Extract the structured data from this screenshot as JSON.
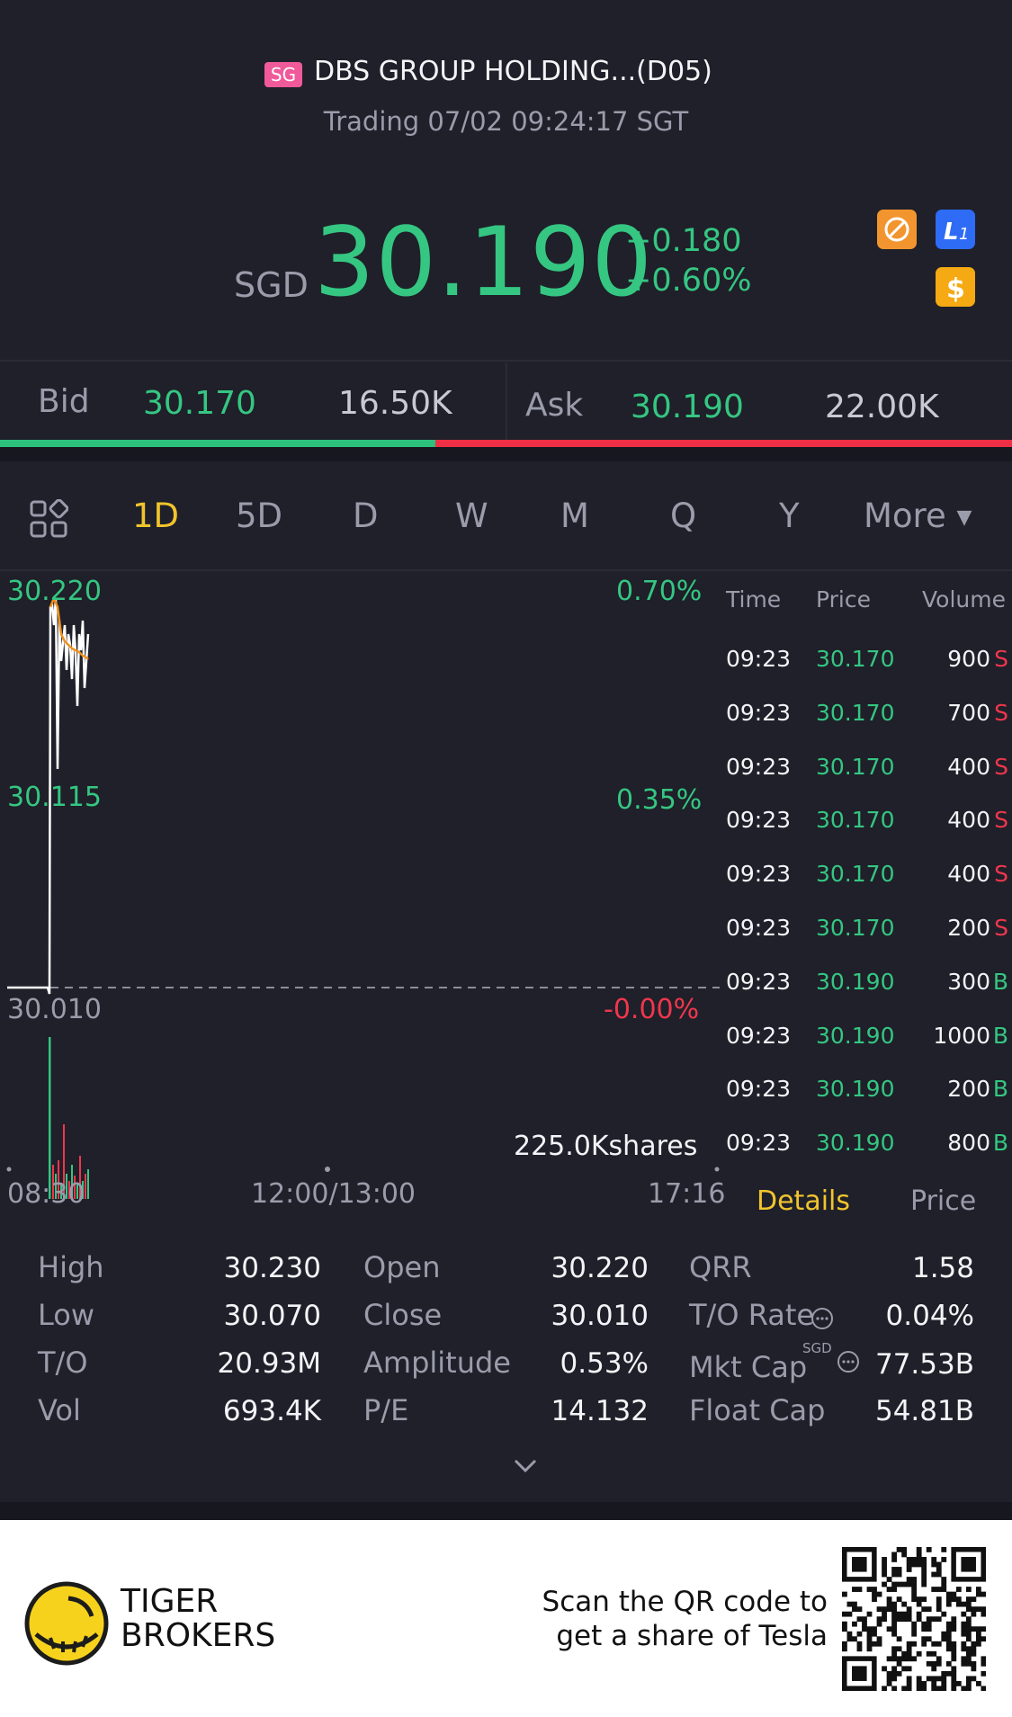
{
  "header": {
    "market_badge": "SG",
    "name": "DBS GROUP HOLDING...(D05)",
    "status": "Trading 07/02 09:24:17 SGT",
    "currency": "SGD",
    "price": "30.190",
    "change": "+0.180",
    "change_pct": "+0.60%"
  },
  "quote_bar": {
    "bid_label": "Bid",
    "bid_price": "30.170",
    "bid_size": "16.50K",
    "ask_label": "Ask",
    "ask_price": "30.190",
    "ask_size": "22.00K",
    "bid_fraction": 0.43
  },
  "tabs": {
    "items": [
      "1D",
      "5D",
      "D",
      "W",
      "M",
      "Q",
      "Y"
    ],
    "more": "More",
    "active": "1D"
  },
  "chart": {
    "price_high": "30.220",
    "price_mid": "30.115",
    "price_low": "30.010",
    "pct_high": "0.70%",
    "pct_mid": "0.35%",
    "pct_low": "-0.00%",
    "volume_label": "225.0Kshares",
    "time_start": "08:30",
    "time_mid": "12:00/13:00",
    "time_end": "17:16",
    "colors": {
      "price_line": "#ffffff",
      "avg_line": "#f0911e",
      "baseline": "#9a9cab"
    }
  },
  "trades": {
    "headers": {
      "time": "Time",
      "price": "Price",
      "volume": "Volume"
    },
    "rows": [
      {
        "time": "09:23",
        "price": "30.170",
        "volume": "900",
        "side": "S"
      },
      {
        "time": "09:23",
        "price": "30.170",
        "volume": "700",
        "side": "S"
      },
      {
        "time": "09:23",
        "price": "30.170",
        "volume": "400",
        "side": "S"
      },
      {
        "time": "09:23",
        "price": "30.170",
        "volume": "400",
        "side": "S"
      },
      {
        "time": "09:23",
        "price": "30.170",
        "volume": "400",
        "side": "S"
      },
      {
        "time": "09:23",
        "price": "30.170",
        "volume": "200",
        "side": "S"
      },
      {
        "time": "09:23",
        "price": "30.190",
        "volume": "300",
        "side": "B"
      },
      {
        "time": "09:23",
        "price": "30.190",
        "volume": "1000",
        "side": "B"
      },
      {
        "time": "09:23",
        "price": "30.190",
        "volume": "200",
        "side": "B"
      },
      {
        "time": "09:23",
        "price": "30.190",
        "volume": "800",
        "side": "B"
      }
    ],
    "tab_details": "Details",
    "tab_price": "Price"
  },
  "stats": {
    "high_label": "High",
    "high": "30.230",
    "low_label": "Low",
    "low": "30.070",
    "to_label": "T/O",
    "to": "20.93M",
    "vol_label": "Vol",
    "vol": "693.4K",
    "open_label": "Open",
    "open": "30.220",
    "close_label": "Close",
    "close": "30.010",
    "amp_label": "Amplitude",
    "amp": "0.53%",
    "pe_label": "P/E",
    "pe": "14.132",
    "qrr_label": "QRR",
    "qrr": "1.58",
    "torate_label": "T/O Rate",
    "torate": "0.04%",
    "mktcap_label": "Mkt Cap",
    "mktcap_unit": "SGD",
    "mktcap": "77.53B",
    "floatcap_label": "Float Cap",
    "floatcap": "54.81B"
  },
  "footer": {
    "brand_line1": "TIGER",
    "brand_line2": "BROKERS",
    "promo_line1": "Scan the QR code to",
    "promo_line2": "get a share of Tesla"
  }
}
